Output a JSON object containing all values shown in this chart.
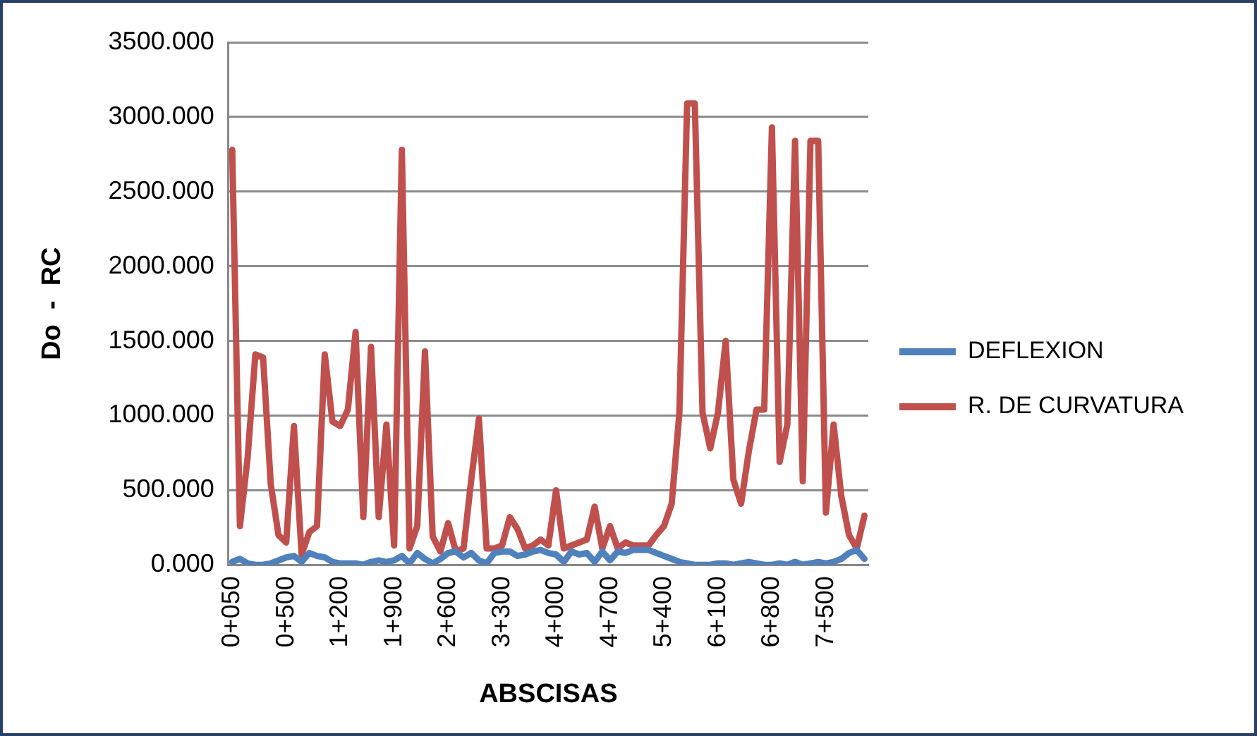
{
  "chart_data": {
    "type": "line",
    "xlabel": "ABSCISAS",
    "ylabel": "Do  -  RC",
    "categories": [
      "0+050",
      null,
      null,
      null,
      null,
      null,
      null,
      "0+500",
      null,
      null,
      null,
      null,
      null,
      null,
      "1+200",
      null,
      null,
      null,
      null,
      null,
      null,
      "1+900",
      null,
      null,
      null,
      null,
      null,
      null,
      "2+600",
      null,
      null,
      null,
      null,
      null,
      null,
      "3+300",
      null,
      null,
      null,
      null,
      null,
      null,
      "4+000",
      null,
      null,
      null,
      null,
      null,
      null,
      "4+700",
      null,
      null,
      null,
      null,
      null,
      null,
      "5+400",
      null,
      null,
      null,
      null,
      null,
      null,
      "6+100",
      null,
      null,
      null,
      null,
      null,
      null,
      "6+800",
      null,
      null,
      null,
      null,
      null,
      null,
      "7+500",
      null,
      null,
      null,
      null,
      null
    ],
    "series": [
      {
        "name": "DEFLEXION",
        "color": "#4f81bd",
        "values": [
          20,
          40,
          10,
          0,
          0,
          10,
          30,
          50,
          60,
          20,
          80,
          60,
          50,
          20,
          10,
          10,
          10,
          0,
          20,
          30,
          20,
          30,
          60,
          10,
          80,
          40,
          10,
          40,
          80,
          90,
          50,
          80,
          30,
          10,
          80,
          90,
          90,
          60,
          70,
          90,
          100,
          80,
          70,
          20,
          90,
          70,
          80,
          20,
          90,
          30,
          90,
          80,
          100,
          100,
          100,
          80,
          60,
          40,
          20,
          10,
          0,
          0,
          0,
          10,
          10,
          0,
          10,
          20,
          10,
          0,
          0,
          10,
          0,
          20,
          0,
          10,
          20,
          10,
          20,
          40,
          80,
          100,
          40
        ]
      },
      {
        "name": "R. DE CURVATURA",
        "color": "#c0504d",
        "values": [
          2780,
          260,
          720,
          1410,
          1390,
          540,
          200,
          150,
          930,
          70,
          220,
          260,
          1410,
          960,
          930,
          1040,
          1560,
          320,
          1460,
          320,
          940,
          130,
          2780,
          110,
          260,
          1430,
          190,
          90,
          280,
          90,
          110,
          570,
          980,
          110,
          110,
          130,
          320,
          240,
          110,
          130,
          170,
          130,
          500,
          110,
          130,
          150,
          170,
          390,
          110,
          260,
          110,
          150,
          130,
          130,
          130,
          200,
          260,
          410,
          1020,
          3090,
          3090,
          1020,
          780,
          1020,
          1500,
          570,
          410,
          760,
          1040,
          1040,
          2930,
          690,
          940,
          2840,
          560,
          2840,
          2840,
          350,
          940,
          460,
          200,
          110,
          330
        ]
      }
    ],
    "ylim": [
      0,
      3500
    ],
    "yticks": [
      {
        "value": 0,
        "label": "0.000"
      },
      {
        "value": 500,
        "label": "500.000"
      },
      {
        "value": 1000,
        "label": "1000.000"
      },
      {
        "value": 1500,
        "label": "1500.000"
      },
      {
        "value": 2000,
        "label": "2000.000"
      },
      {
        "value": 2500,
        "label": "2500.000"
      },
      {
        "value": 3000,
        "label": "3000.000"
      },
      {
        "value": 3500,
        "label": "3500.000"
      }
    ],
    "grid": "y",
    "legend": "right",
    "marker": "none",
    "line_style": "solid"
  }
}
